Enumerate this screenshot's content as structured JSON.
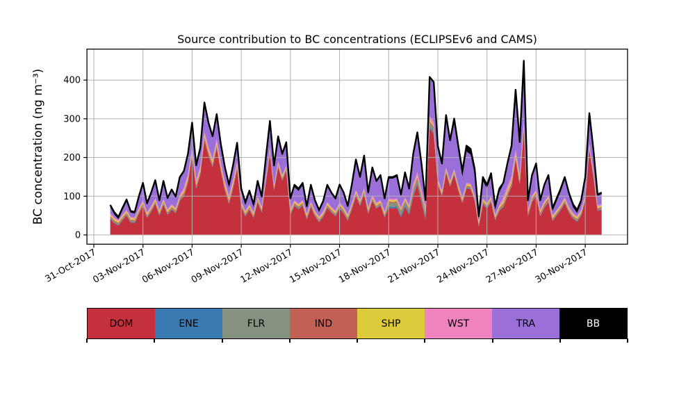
{
  "chart_data": {
    "type": "area",
    "stacked": true,
    "title": "Source contribution to BC concentrations (ECLIPSEv6 and CAMS)",
    "xlabel": "",
    "ylabel": "BC concentration (ng m⁻³)",
    "grid": true,
    "legend_position": "bottom",
    "total_line_color": "#000000",
    "x_unit": "days since 01-Nov-2017 00:00, 6-hourly samples",
    "x_start": 0,
    "x_step": 0.25,
    "n_points": 121,
    "xlim_days": [
      -1.42,
      31.58
    ],
    "ylim": [
      -24,
      480
    ],
    "yticks": [
      0,
      100,
      200,
      300,
      400
    ],
    "xticks": [
      {
        "day": -1,
        "label": "31-Oct-2017"
      },
      {
        "day": 2,
        "label": "03-Nov-2017"
      },
      {
        "day": 5,
        "label": "06-Nov-2017"
      },
      {
        "day": 8,
        "label": "09-Nov-2017"
      },
      {
        "day": 11,
        "label": "12-Nov-2017"
      },
      {
        "day": 14,
        "label": "15-Nov-2017"
      },
      {
        "day": 17,
        "label": "18-Nov-2017"
      },
      {
        "day": 20,
        "label": "21-Nov-2017"
      },
      {
        "day": 23,
        "label": "24-Nov-2017"
      },
      {
        "day": 26,
        "label": "27-Nov-2017"
      },
      {
        "day": 29,
        "label": "30-Nov-2017"
      }
    ],
    "series": [
      {
        "name": "DOM",
        "color": "#c4303c",
        "text_color": "#000000",
        "values": [
          42,
          30,
          24,
          38,
          50,
          32,
          31,
          55,
          75,
          44,
          60,
          80,
          50,
          78,
          52,
          65,
          56,
          88,
          100,
          135,
          205,
          120,
          155,
          245,
          205,
          175,
          225,
          165,
          115,
          80,
          120,
          170,
          72,
          48,
          65,
          44,
          85,
          58,
          135,
          210,
          115,
          175,
          140,
          165,
          52,
          75,
          66,
          76,
          40,
          72,
          48,
          33,
          46,
          70,
          58,
          48,
          68,
          56,
          37,
          66,
          100,
          75,
          105,
          54,
          88,
          68,
          76,
          45,
          70,
          68,
          70,
          46,
          72,
          52,
          100,
          130,
          85,
          40,
          275,
          260,
          130,
          100,
          160,
          125,
          155,
          115,
          82,
          120,
          118,
          88,
          22,
          80,
          68,
          85,
          38,
          62,
          72,
          100,
          125,
          195,
          130,
          270,
          48,
          85,
          100,
          48,
          70,
          85,
          36,
          50,
          64,
          82,
          58,
          42,
          34,
          50,
          90,
          220,
          150,
          62,
          65
        ]
      },
      {
        "name": "ENE",
        "color": "#3a7ab2",
        "text_color": "#000000",
        "values": [
          1.5,
          1.5,
          1.5,
          1.5,
          1.5,
          1.5,
          1.5,
          1.5,
          1.5,
          1.5,
          1.5,
          1.5,
          1.5,
          1.5,
          1.5,
          1.5,
          1.5,
          1.5,
          1.5,
          1.5,
          1.5,
          1.5,
          1.5,
          1.5,
          1.5,
          1.5,
          1.5,
          1.5,
          1.5,
          1.5,
          1.5,
          1.5,
          1.5,
          1.5,
          1.5,
          1.5,
          1.5,
          1.5,
          1.5,
          1.5,
          1.5,
          1.5,
          1.5,
          1.5,
          1.5,
          1.5,
          1.5,
          1.5,
          1.5,
          1.5,
          1.5,
          1.5,
          1.5,
          1.5,
          1.5,
          1.5,
          1.5,
          1.5,
          1.5,
          1.5,
          1.5,
          1.5,
          1.5,
          1.5,
          1.5,
          1.5,
          1.5,
          1.5,
          4,
          4,
          4,
          4,
          4,
          4,
          4,
          4,
          4,
          4,
          4,
          4,
          1.5,
          1.5,
          1.5,
          1.5,
          1.5,
          1.5,
          1.5,
          1.5,
          1.5,
          1.5,
          1.5,
          1.5,
          1.5,
          1.5,
          1.5,
          1.5,
          1.5,
          1.5,
          1.5,
          1.5,
          1.5,
          1.5,
          1.5,
          1.5,
          1.5,
          1.5,
          1.5,
          1.5,
          1.5,
          1.5,
          1.5,
          1.5,
          1.5,
          1.5,
          1.5,
          1.5,
          1.5,
          1.5,
          1.5,
          1.5,
          1.5,
          1.5,
          1.5
        ]
      },
      {
        "name": "FLR",
        "color": "#85927f",
        "text_color": "#000000",
        "values": [
          2.5,
          2.5,
          2.5,
          2.5,
          2.5,
          2.5,
          2.5,
          2.5,
          2.5,
          2.5,
          2.5,
          2.5,
          2.5,
          2.5,
          2.5,
          2.5,
          2.5,
          2.5,
          2.5,
          2.5,
          2.5,
          2.5,
          2.5,
          2.5,
          2.5,
          2.5,
          2.5,
          2.5,
          2.5,
          2.5,
          2.5,
          2.5,
          2.5,
          2.5,
          2.5,
          2.5,
          2.5,
          2.5,
          2.5,
          2.5,
          2.5,
          2.5,
          2.5,
          2.5,
          2.5,
          2.5,
          2.5,
          2.5,
          2.5,
          2.5,
          2.5,
          2.5,
          2.5,
          2.5,
          2.5,
          2.5,
          4,
          4,
          4,
          4,
          4,
          4,
          4,
          4,
          2.5,
          2.5,
          2.5,
          2.5,
          10,
          10,
          10,
          10,
          10,
          10,
          10,
          10,
          10,
          10,
          10,
          10,
          2.5,
          2.5,
          2.5,
          2.5,
          2.5,
          2.5,
          2.5,
          2.5,
          2.5,
          2.5,
          2.5,
          2.5,
          2.5,
          2.5,
          2.5,
          2.5,
          2.5,
          2.5,
          2.5,
          2.5,
          2.5,
          2.5,
          2.5,
          2.5,
          2.5,
          2.5,
          2.5,
          2.5,
          2.5,
          2.5,
          2.5,
          2.5,
          2.5,
          2.5,
          2.5,
          2.5,
          2.5,
          2.5,
          2.5,
          2.5,
          2.5
        ]
      },
      {
        "name": "IND",
        "color": "#c26055",
        "text_color": "#000000",
        "values": [
          3,
          3,
          3,
          3,
          3,
          3,
          3,
          3,
          3,
          3,
          3,
          3,
          3,
          3,
          3,
          3,
          3,
          3,
          5,
          5,
          5,
          5,
          5,
          5,
          5,
          5,
          5,
          5,
          5,
          5,
          5,
          5,
          3,
          3,
          3,
          3,
          3,
          3,
          3,
          3,
          3,
          3,
          3,
          3,
          3,
          3,
          3,
          3,
          3,
          3,
          3,
          3,
          3,
          3,
          3,
          3,
          3,
          3,
          3,
          3,
          3,
          3,
          3,
          3,
          3,
          3,
          3,
          3,
          3,
          3,
          3,
          3,
          3,
          3,
          5,
          5,
          5,
          5,
          5,
          5,
          3,
          3,
          3,
          3,
          3,
          3,
          3,
          3,
          3,
          3,
          3,
          3,
          3,
          3,
          3,
          3,
          5,
          5,
          5,
          5,
          5,
          5,
          5,
          5,
          5,
          5,
          5,
          5,
          3,
          3,
          3,
          3,
          3,
          3,
          3,
          3,
          3,
          3,
          3,
          3,
          3
        ]
      },
      {
        "name": "SHP",
        "color": "#ddca3a",
        "text_color": "#000000",
        "values": [
          4,
          4,
          4,
          4,
          4,
          4,
          4,
          4,
          4,
          4,
          4,
          4,
          4,
          4,
          4,
          4,
          4,
          4,
          6,
          6,
          6,
          6,
          6,
          6,
          6,
          6,
          6,
          6,
          6,
          6,
          6,
          6,
          4,
          4,
          4,
          4,
          4,
          4,
          4,
          4,
          4,
          4,
          4,
          4,
          4,
          4,
          4,
          4,
          4,
          4,
          4,
          4,
          4,
          4,
          4,
          4,
          4,
          4,
          4,
          4,
          4,
          4,
          4,
          4,
          4,
          4,
          4,
          4,
          4,
          4,
          4,
          4,
          4,
          4,
          4,
          4,
          4,
          4,
          4,
          4,
          4,
          4,
          4,
          4,
          4,
          4,
          4,
          4,
          4,
          4,
          4,
          4,
          4,
          4,
          4,
          4,
          7,
          7,
          7,
          7,
          7,
          7,
          4,
          4,
          4,
          4,
          4,
          4,
          4,
          4,
          4,
          4,
          4,
          4,
          4,
          4,
          4,
          4,
          4,
          4,
          4
        ]
      },
      {
        "name": "WST",
        "color": "#ef83c0",
        "text_color": "#000000",
        "values": [
          3.5,
          3.5,
          3.5,
          3.5,
          3.5,
          3.5,
          3.5,
          3.5,
          3.5,
          3.5,
          3.5,
          3.5,
          3.5,
          3.5,
          3.5,
          3.5,
          3.5,
          3.5,
          7,
          7,
          7,
          7,
          7,
          7,
          7,
          7,
          7,
          7,
          7,
          7,
          7,
          7,
          3.5,
          3.5,
          3.5,
          3.5,
          3.5,
          3.5,
          3.5,
          3.5,
          3.5,
          3.5,
          3.5,
          3.5,
          3.5,
          3.5,
          3.5,
          3.5,
          3.5,
          3.5,
          3.5,
          3.5,
          3.5,
          3.5,
          3.5,
          3.5,
          3.5,
          3.5,
          3.5,
          3.5,
          3.5,
          3.5,
          3.5,
          3.5,
          3.5,
          3.5,
          3.5,
          3.5,
          3.5,
          3.5,
          3.5,
          3.5,
          3.5,
          3.5,
          9,
          9,
          9,
          9,
          9,
          9,
          3.5,
          3.5,
          3.5,
          3.5,
          3.5,
          3.5,
          3.5,
          3.5,
          3.5,
          3.5,
          3.5,
          3.5,
          3.5,
          3.5,
          3.5,
          3.5,
          10,
          10,
          10,
          10,
          10,
          10,
          3.5,
          3.5,
          3.5,
          3.5,
          3.5,
          3.5,
          3.5,
          3.5,
          3.5,
          3.5,
          3.5,
          3.5,
          3.5,
          3.5,
          3.5,
          3.5,
          3.5,
          3.5,
          3.5
        ]
      },
      {
        "name": "TRA",
        "color": "#9a70d8",
        "text_color": "#000000",
        "values": [
          15,
          8,
          2,
          11,
          21,
          11,
          10,
          26,
          41,
          19,
          31,
          43,
          21,
          43,
          25,
          34,
          25,
          43,
          39,
          49,
          59,
          34,
          44,
          71,
          59,
          54,
          61,
          44,
          30,
          20,
          30,
          38,
          25,
          14,
          27,
          13,
          36,
          23,
          46,
          66,
          46,
          61,
          51,
          56,
          22,
          34,
          33,
          38,
          14,
          37,
          21,
          11,
          23,
          41,
          33,
          28,
          42,
          34,
          18,
          44,
          75,
          55,
          80,
          36,
          68,
          53,
          60,
          31,
          51,
          53,
          56,
          30,
          61,
          39,
          74,
          99,
          64,
          14,
          97,
          99,
          81,
          66,
          131,
          101,
          116,
          86,
          54,
          81,
          75,
          53,
          2,
          45,
          37,
          50,
          12,
          33,
          33,
          55,
          75,
          150,
          80,
          150,
          21,
          49,
          64,
          21,
          39,
          49,
          11,
          22,
          33,
          45,
          29,
          15,
          8,
          17,
          41,
          76,
          51,
          24,
          26
        ]
      },
      {
        "name": "BB",
        "color": "#000000",
        "text_color": "#ffffff",
        "values": [
          6,
          6,
          6,
          6,
          6,
          4,
          4,
          4,
          4,
          4,
          4,
          4,
          4,
          4,
          4,
          4,
          4,
          4,
          4,
          4,
          4,
          4,
          4,
          4,
          4,
          4,
          4,
          4,
          8,
          8,
          8,
          8,
          8,
          8,
          8,
          8,
          4,
          4,
          4,
          4,
          4,
          4,
          4,
          4,
          6,
          6,
          6,
          6,
          6,
          6,
          6,
          6,
          4,
          4,
          4,
          4,
          4,
          4,
          4,
          4,
          4,
          4,
          4,
          4,
          4,
          4,
          4,
          4,
          4,
          4,
          4,
          4,
          4,
          4,
          4,
          4,
          4,
          4,
          4,
          4,
          4,
          4,
          4,
          4,
          15,
          15,
          15,
          15,
          15,
          15,
          10,
          10,
          10,
          10,
          10,
          10,
          4,
          4,
          4,
          4,
          4,
          4,
          4,
          4,
          4,
          4,
          4,
          4,
          8,
          8,
          8,
          8,
          8,
          8,
          8,
          8,
          4,
          4,
          4,
          4,
          4
        ]
      }
    ]
  },
  "legend": {
    "items": [
      "DOM",
      "ENE",
      "FLR",
      "IND",
      "SHP",
      "WST",
      "TRA",
      "BB"
    ]
  },
  "style": {
    "grid_color": "#b0b0b0",
    "spine_color": "#000000",
    "background_color": "#ffffff"
  }
}
